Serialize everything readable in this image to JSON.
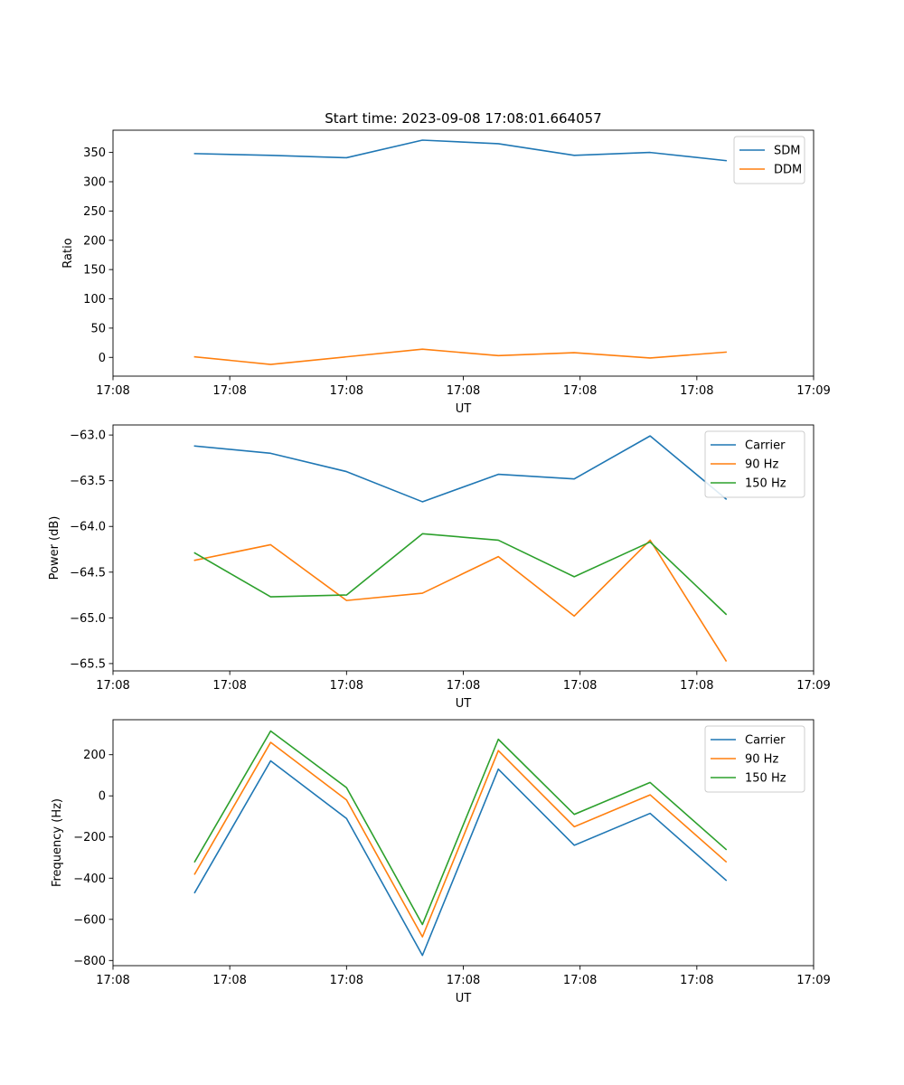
{
  "figure_title": "Start time: 2023-09-08 17:08:01.664057",
  "colors": {
    "blue": "#1f77b4",
    "orange": "#ff7f0e",
    "green": "#2ca02c"
  },
  "chart_data": [
    {
      "type": "line",
      "title": "Start time: 2023-09-08 17:08:01.664057",
      "xlabel": "UT",
      "ylabel": "Ratio",
      "x": [
        0.7,
        1.35,
        2.0,
        2.65,
        3.3,
        3.95,
        4.6,
        5.25
      ],
      "xlim": [
        0,
        6
      ],
      "x_ticks": [
        0,
        1,
        2,
        3,
        4,
        5,
        6
      ],
      "x_tick_labels": [
        "17:08",
        "17:08",
        "17:08",
        "17:08",
        "17:08",
        "17:08",
        "17:09"
      ],
      "ylim": [
        -32,
        388
      ],
      "y_ticks": [
        0,
        50,
        100,
        150,
        200,
        250,
        300,
        350
      ],
      "y_tick_labels": [
        "0",
        "50",
        "100",
        "150",
        "200",
        "250",
        "300",
        "350"
      ],
      "legend": "top-right",
      "series": [
        {
          "name": "SDM",
          "color": "#1f77b4",
          "values": [
            348,
            345,
            341,
            371,
            365,
            345,
            350,
            336
          ]
        },
        {
          "name": "DDM",
          "color": "#ff7f0e",
          "values": [
            1,
            -12,
            1,
            14,
            3,
            8,
            -1,
            9
          ]
        }
      ]
    },
    {
      "type": "line",
      "xlabel": "UT",
      "ylabel": "Power (dB)",
      "x": [
        0.7,
        1.35,
        2.0,
        2.65,
        3.3,
        3.95,
        4.6,
        5.25
      ],
      "xlim": [
        0,
        6
      ],
      "x_ticks": [
        0,
        1,
        2,
        3,
        4,
        5,
        6
      ],
      "x_tick_labels": [
        "17:08",
        "17:08",
        "17:08",
        "17:08",
        "17:08",
        "17:08",
        "17:09"
      ],
      "ylim": [
        -65.58,
        -62.89
      ],
      "y_ticks": [
        -65.5,
        -65.0,
        -64.5,
        -64.0,
        -63.5,
        -63.0
      ],
      "y_tick_labels": [
        "−65.5",
        "−65.0",
        "−64.5",
        "−64.0",
        "−63.5",
        "−63.0"
      ],
      "legend": "top-right",
      "series": [
        {
          "name": "Carrier",
          "color": "#1f77b4",
          "values": [
            -63.12,
            -63.2,
            -63.4,
            -63.73,
            -63.43,
            -63.48,
            -63.01,
            -63.7
          ]
        },
        {
          "name": "90 Hz",
          "color": "#ff7f0e",
          "values": [
            -64.37,
            -64.2,
            -64.81,
            -64.73,
            -64.33,
            -64.98,
            -64.15,
            -65.47
          ]
        },
        {
          "name": "150 Hz",
          "color": "#2ca02c",
          "values": [
            -64.29,
            -64.77,
            -64.75,
            -64.08,
            -64.15,
            -64.55,
            -64.17,
            -64.96
          ]
        }
      ]
    },
    {
      "type": "line",
      "xlabel": "UT",
      "ylabel": "Frequency (Hz)",
      "x": [
        0.7,
        1.35,
        2.0,
        2.65,
        3.3,
        3.95,
        4.6,
        5.25
      ],
      "xlim": [
        0,
        6
      ],
      "x_ticks": [
        0,
        1,
        2,
        3,
        4,
        5,
        6
      ],
      "x_tick_labels": [
        "17:08",
        "17:08",
        "17:08",
        "17:08",
        "17:08",
        "17:08",
        "17:09"
      ],
      "ylim": [
        -825,
        370
      ],
      "y_ticks": [
        -800,
        -600,
        -400,
        -200,
        0,
        200
      ],
      "y_tick_labels": [
        "−800",
        "−600",
        "−400",
        "−200",
        "0",
        "200"
      ],
      "legend": "top-right",
      "series": [
        {
          "name": "Carrier",
          "color": "#1f77b4",
          "values": [
            -470,
            170,
            -110,
            -775,
            130,
            -240,
            -85,
            -410
          ]
        },
        {
          "name": "90 Hz",
          "color": "#ff7f0e",
          "values": [
            -380,
            260,
            -20,
            -685,
            220,
            -150,
            5,
            -320
          ]
        },
        {
          "name": "150 Hz",
          "color": "#2ca02c",
          "values": [
            -320,
            315,
            40,
            -625,
            275,
            -90,
            65,
            -260
          ]
        }
      ]
    }
  ]
}
